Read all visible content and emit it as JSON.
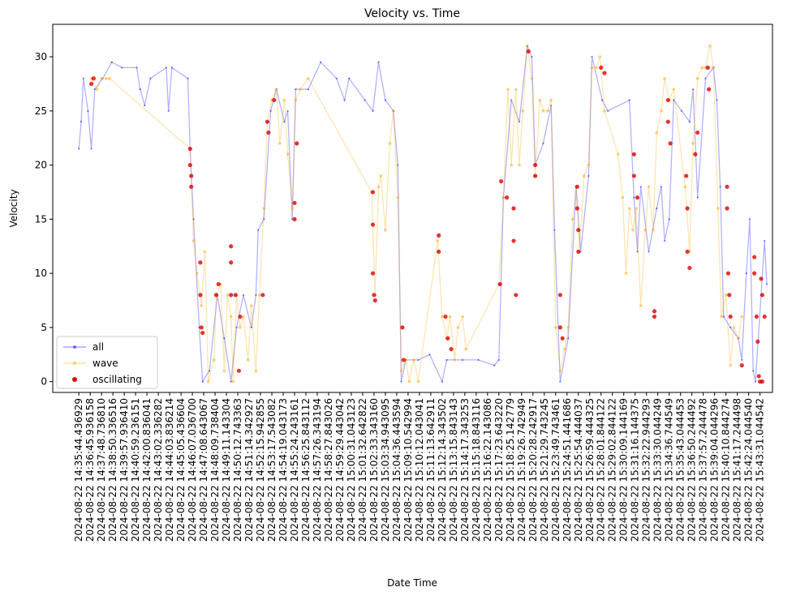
{
  "chart_data": {
    "type": "line",
    "title": "Velocity vs. Time",
    "x_label": "Date Time",
    "y_label": "Velocity",
    "xlim": [
      -2.3,
      61.1
    ],
    "ylim": [
      -1,
      33
    ],
    "yticks": [
      0,
      5,
      10,
      15,
      20,
      25,
      30
    ],
    "legend": "lower left",
    "xticks": [
      {
        "value": 0,
        "label": "2024-08-22 14:35:44.436929"
      },
      {
        "value": 1,
        "label": "2024-08-22 14:36:45.936158"
      },
      {
        "value": 2,
        "label": "2024-08-22 14:37:48.736810"
      },
      {
        "value": 3,
        "label": "2024-08-22 14:38:50.336516"
      },
      {
        "value": 4,
        "label": "2024-08-22 14:39:57.936410"
      },
      {
        "value": 5,
        "label": "2024-08-22 14:40:59.236151"
      },
      {
        "value": 6,
        "label": "2024-08-22 14:42:00.836041"
      },
      {
        "value": 7,
        "label": "2024-08-22 14:43:02.336282"
      },
      {
        "value": 8,
        "label": "2024-08-22 14:44:03.836214"
      },
      {
        "value": 9,
        "label": "2024-08-22 14:45:05.436604"
      },
      {
        "value": 10,
        "label": "2024-08-22 14:46:07.036700"
      },
      {
        "value": 11,
        "label": "2024-08-22 14:47:08.643067"
      },
      {
        "value": 12,
        "label": "2024-08-22 14:48:09.738404"
      },
      {
        "value": 13,
        "label": "2024-08-22 14:49:11.143304"
      },
      {
        "value": 14,
        "label": "2024-08-22 14:50:12.743363"
      },
      {
        "value": 15,
        "label": "2024-08-22 14:51:14.342927"
      },
      {
        "value": 16,
        "label": "2024-08-22 14:52:15.942855"
      },
      {
        "value": 17,
        "label": "2024-08-22 14:53:17.543082"
      },
      {
        "value": 18,
        "label": "2024-08-22 14:54:19.043173"
      },
      {
        "value": 19,
        "label": "2024-08-22 14:55:24.243161"
      },
      {
        "value": 20,
        "label": "2024-08-22 14:56:25.843112"
      },
      {
        "value": 21,
        "label": "2024-08-22 14:57:26.343194"
      },
      {
        "value": 22,
        "label": "2024-08-22 14:58:27.843026"
      },
      {
        "value": 23,
        "label": "2024-08-22 14:59:29.443042"
      },
      {
        "value": 24,
        "label": "2024-08-22 15:00:31.043123"
      },
      {
        "value": 25,
        "label": "2024-08-22 15:01:32.642822"
      },
      {
        "value": 26,
        "label": "2024-08-22 15:02:33.343160"
      },
      {
        "value": 27,
        "label": "2024-08-22 15:03:34.943095"
      },
      {
        "value": 28,
        "label": "2024-08-22 15:04:36.443594"
      },
      {
        "value": 29,
        "label": "2024-08-22 15:09:10.542994"
      },
      {
        "value": 30,
        "label": "2024-08-22 15:10:12.043041"
      },
      {
        "value": 31,
        "label": "2024-08-22 15:11:13.642911"
      },
      {
        "value": 32,
        "label": "2024-08-22 15:12:14.343502"
      },
      {
        "value": 33,
        "label": "2024-08-22 15:13:15.843143"
      },
      {
        "value": 34,
        "label": "2024-08-22 15:14:17.343253"
      },
      {
        "value": 35,
        "label": "2024-08-22 15:15:18.843116"
      },
      {
        "value": 36,
        "label": "2024-08-22 15:16:22.143086"
      },
      {
        "value": 37,
        "label": "2024-08-22 15:17:23.643220"
      },
      {
        "value": 38,
        "label": "2024-08-22 15:18:25.142779"
      },
      {
        "value": 39,
        "label": "2024-08-22 15:19:26.742949"
      },
      {
        "value": 40,
        "label": "2024-08-22 15:20:28.242917"
      },
      {
        "value": 41,
        "label": "2024-08-22 15:21:29.743245"
      },
      {
        "value": 42,
        "label": "2024-08-22 15:23:49.743461"
      },
      {
        "value": 43,
        "label": "2024-08-22 15:24:51.441686"
      },
      {
        "value": 44,
        "label": "2024-08-22 15:25:54.444037"
      },
      {
        "value": 45,
        "label": "2024-08-22 15:26:59.444325"
      },
      {
        "value": 46,
        "label": "2024-08-22 15:28:01.844122"
      },
      {
        "value": 47,
        "label": "2024-08-22 15:29:02.844122"
      },
      {
        "value": 48,
        "label": "2024-08-22 15:30:09.144169"
      },
      {
        "value": 49,
        "label": "2024-08-22 15:31:16.144375"
      },
      {
        "value": 50,
        "label": "2024-08-22 15:32:22.944293"
      },
      {
        "value": 51,
        "label": "2024-08-22 15:33:30.044249"
      },
      {
        "value": 52,
        "label": "2024-08-22 15:34:36.744549"
      },
      {
        "value": 53,
        "label": "2024-08-22 15:35:43.044453"
      },
      {
        "value": 54,
        "label": "2024-08-22 15:36:50.244492"
      },
      {
        "value": 55,
        "label": "2024-08-22 15:37:57.244478"
      },
      {
        "value": 56,
        "label": "2024-08-22 15:39:04.044296"
      },
      {
        "value": 57,
        "label": "2024-08-22 15:40:10.844274"
      },
      {
        "value": 58,
        "label": "2024-08-22 15:41:17.244498"
      },
      {
        "value": 59,
        "label": "2024-08-22 15:42:24.044540"
      },
      {
        "value": 60,
        "label": "2024-08-22 15:43:31.044542"
      }
    ],
    "series": [
      {
        "name": "all",
        "color": "#0000ff",
        "kind": "line",
        "x": [
          0,
          0.2,
          0.4,
          0.8,
          1.1,
          1.4,
          2.1,
          2.9,
          3.8,
          5.1,
          5.4,
          5.8,
          6.3,
          7.7,
          7.9,
          8.2,
          9.6,
          9.8,
          10.1,
          10.6,
          10.9,
          11.5,
          12.2,
          12.8,
          13.4,
          13.9,
          14.5,
          15.2,
          15.6,
          15.8,
          16.3,
          16.9,
          17.4,
          18.1,
          18.4,
          18.8,
          19.1,
          20.2,
          21.3,
          22.7,
          23.4,
          23.8,
          25.2,
          25.9,
          26.4,
          27,
          27.7,
          28.1,
          28.4,
          28.8,
          29.9,
          30.9,
          32,
          32.4,
          33.8,
          35.2,
          36.6,
          37,
          37.4,
          38.1,
          38.8,
          39.5,
          39.9,
          40.2,
          40.9,
          41.6,
          41.9,
          42.4,
          43.1,
          43.8,
          44.2,
          44.9,
          45.2,
          46.1,
          46.6,
          48.5,
          48.9,
          49.2,
          49.5,
          50.2,
          50.9,
          51.3,
          51.6,
          52,
          52.4,
          53.1,
          53.8,
          54.1,
          54.5,
          55.2,
          55.9,
          56.2,
          56.5,
          56.8,
          57.4,
          58.1,
          58.4,
          58.8,
          59.1,
          59.4,
          59.6,
          60.1,
          60.4,
          60.6
        ],
        "values": [
          21.5,
          24,
          28,
          25,
          21.5,
          27,
          28,
          29.5,
          29,
          29,
          27,
          25.5,
          28,
          29,
          25,
          29,
          28,
          21.5,
          15,
          5,
          0,
          1,
          8,
          4,
          0,
          5,
          8,
          5,
          8,
          14,
          15,
          25,
          27,
          24,
          25,
          15,
          27,
          27,
          29.5,
          28,
          26,
          28,
          26,
          25,
          29.5,
          26,
          25,
          20,
          0,
          2,
          2,
          2.5,
          0,
          2,
          2,
          2,
          1.5,
          2,
          17,
          26,
          24,
          31,
          30,
          20,
          22,
          25.5,
          14,
          0,
          4,
          18,
          12,
          19,
          30,
          26,
          25,
          26,
          17,
          12,
          18,
          12,
          16,
          18,
          13,
          15,
          26,
          25,
          24,
          27,
          17,
          28,
          29,
          26,
          18,
          6,
          5,
          4,
          2,
          10,
          15,
          1,
          0,
          8,
          13,
          9
        ]
      },
      {
        "name": "wave",
        "color": "#ffa500",
        "kind": "line",
        "x": [
          1.1,
          1.6,
          2,
          2.4,
          2.7,
          9.8,
          10.1,
          10.4,
          10.8,
          11.1,
          11.4,
          11.9,
          12.1,
          12.5,
          12.8,
          13.1,
          13.4,
          13.6,
          13.9,
          14.2,
          14.5,
          14.9,
          15.2,
          15.6,
          15.9,
          16.3,
          16.6,
          17,
          17.4,
          17.7,
          18.1,
          18.4,
          18.8,
          19.1,
          19.5,
          20.2,
          25.8,
          26.1,
          26.4,
          26.6,
          27,
          27.4,
          27.7,
          28.1,
          28.4,
          28.8,
          29.1,
          29.5,
          29.9,
          31.6,
          32,
          32.4,
          32.7,
          33.1,
          33.4,
          33.8,
          34.1,
          37,
          37.4,
          37.8,
          38.1,
          38.5,
          38.8,
          39.1,
          39.5,
          39.9,
          40.2,
          40.6,
          40.9,
          41.3,
          41.6,
          42,
          42.4,
          42.8,
          43.1,
          43.5,
          43.8,
          44.1,
          44.5,
          44.9,
          45.2,
          45.6,
          45.9,
          46.3,
          47.5,
          47.9,
          48.2,
          48.5,
          48.8,
          49.1,
          49.5,
          49.9,
          50.2,
          50.6,
          50.9,
          51.3,
          51.6,
          52,
          52.4,
          53.4,
          53.8,
          54.1,
          54.5,
          54.9,
          55.2,
          55.6,
          55.9,
          56.3,
          56.6,
          57,
          57.4,
          57.7,
          58.1,
          58.4
        ],
        "values": [
          28,
          27,
          28,
          28,
          28,
          21.5,
          13,
          10,
          7,
          12,
          0,
          2,
          8,
          9,
          1,
          8,
          6,
          0,
          8,
          5,
          6,
          2,
          7,
          1,
          8,
          16,
          24,
          26,
          27,
          22,
          26,
          21,
          16,
          26,
          27,
          28,
          17.5,
          8,
          18,
          19,
          14,
          22,
          25,
          17,
          1,
          2,
          0,
          2,
          0,
          13,
          6,
          4,
          6,
          2,
          5,
          6,
          3,
          9,
          17,
          27,
          20,
          27,
          20,
          25,
          31,
          28,
          19,
          26,
          25,
          25,
          26,
          5,
          1,
          3,
          5,
          15,
          18,
          12,
          19,
          20,
          29,
          29,
          30,
          25,
          21,
          17,
          10,
          16,
          14,
          16,
          7,
          14,
          18,
          14,
          23,
          25,
          28,
          26,
          27,
          18,
          12,
          22,
          28,
          29,
          29,
          31,
          29,
          16,
          6,
          8,
          1.5,
          5,
          4,
          6
        ]
      },
      {
        "name": "oscillating",
        "color": "#e00000",
        "kind": "scatter",
        "x": [
          1.1,
          1.3,
          9.8,
          9.8,
          9.9,
          9.9,
          10.7,
          10.7,
          10.8,
          10.9,
          12.1,
          12.3,
          13.4,
          13.4,
          13.4,
          13.8,
          14.1,
          14.2,
          16.2,
          16.6,
          16.7,
          17.2,
          19,
          19,
          19.2,
          25.9,
          25.9,
          25.9,
          26,
          26.1,
          28.5,
          28.6,
          31.7,
          31.7,
          32.3,
          32.5,
          32.8,
          37.1,
          37.2,
          37.7,
          38.3,
          38.3,
          38.5,
          39.6,
          40.2,
          40.2,
          42.4,
          42.4,
          42.6,
          43.9,
          43.9,
          44,
          44,
          46,
          46.3,
          48.9,
          48.9,
          49.2,
          50.7,
          50.7,
          51.9,
          51.9,
          52.1,
          53.5,
          53.6,
          53.6,
          53.8,
          54.3,
          54.5,
          55.4,
          55.5,
          57.1,
          57.1,
          57.2,
          57.3,
          57.4,
          58.4,
          59.5,
          59.5,
          59.7,
          59.8,
          60.1,
          60.2,
          60.4,
          59.9,
          60,
          60.2
        ],
        "values": [
          27.5,
          28,
          21.5,
          20,
          19,
          18,
          11,
          8,
          5,
          4.5,
          8,
          9,
          12.5,
          11,
          8,
          8,
          1,
          6,
          8,
          24,
          23,
          26,
          16.5,
          15,
          22,
          17.5,
          14.5,
          10,
          8,
          7.5,
          5,
          2,
          13.5,
          12,
          6,
          4,
          3,
          9,
          18.5,
          17,
          16,
          13,
          8,
          30.5,
          20,
          19,
          8,
          5,
          4,
          18,
          16,
          14,
          12,
          29,
          28.5,
          21,
          19,
          17,
          6.5,
          6,
          26,
          24,
          22,
          19,
          16,
          12,
          10.5,
          21,
          23,
          29,
          27,
          18,
          16,
          10,
          8,
          6,
          1.5,
          11.5,
          10,
          6,
          3.7,
          9.5,
          8,
          6,
          0.5,
          0,
          0
        ]
      }
    ]
  }
}
